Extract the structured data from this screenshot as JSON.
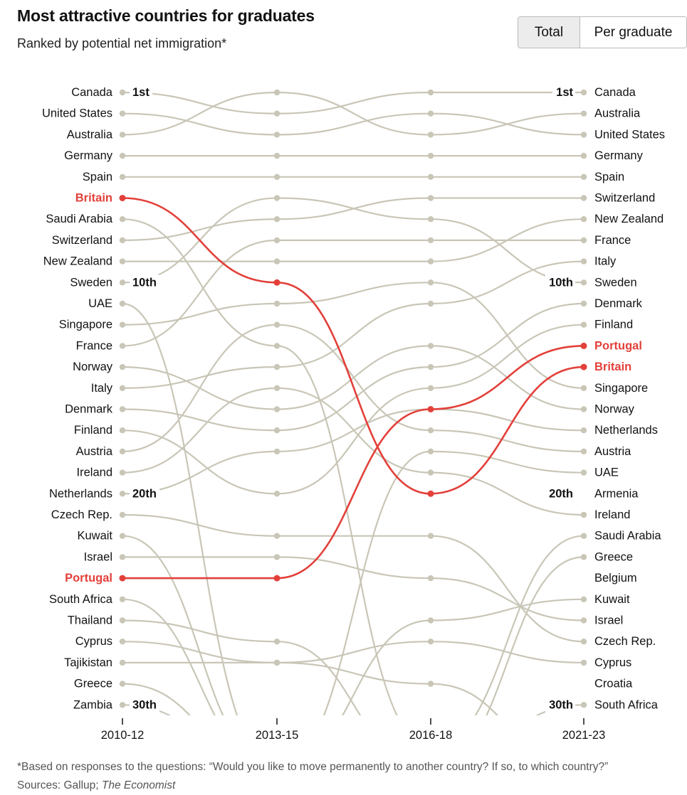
{
  "title": "Most attractive countries for graduates",
  "subtitle": "Ranked by potential net immigration*",
  "toggle": {
    "options": [
      "Total",
      "Per graduate"
    ],
    "selected": "Total"
  },
  "footnote": "*Based on responses to the questions: “Would you like to move permanently to another country? If so, to which country?”",
  "sources_prefix": "Sources: Gallup; ",
  "sources_italic": "The Economist",
  "colors": {
    "line": "#c9c6b7",
    "highlight": "#e3403a",
    "text": "#121212"
  },
  "chart_data": {
    "type": "line",
    "periods": [
      "2010-12",
      "2013-15",
      "2016-18",
      "2021-23"
    ],
    "rank_markers": {
      "left": [
        {
          "rank": 1,
          "label": "1st"
        },
        {
          "rank": 10,
          "label": "10th"
        },
        {
          "rank": 20,
          "label": "20th"
        },
        {
          "rank": 30,
          "label": "30th"
        }
      ],
      "right": [
        {
          "rank": 1,
          "label": "1st"
        },
        {
          "rank": 10,
          "label": "10th"
        },
        {
          "rank": 20,
          "label": "20th"
        },
        {
          "rank": 30,
          "label": "30th"
        }
      ]
    },
    "left_labels": [
      "Canada",
      "United States",
      "Australia",
      "Germany",
      "Spain",
      "Britain",
      "Saudi Arabia",
      "Switzerland",
      "New Zealand",
      "Sweden",
      "UAE",
      "Singapore",
      "France",
      "Norway",
      "Italy",
      "Denmark",
      "Finland",
      "Austria",
      "Ireland",
      "Netherlands",
      "Czech Rep.",
      "Kuwait",
      "Israel",
      "Portugal",
      "South Africa",
      "Thailand",
      "Cyprus",
      "Tajikistan",
      "Greece",
      "Zambia"
    ],
    "right_labels": [
      "Canada",
      "Australia",
      "United States",
      "Germany",
      "Spain",
      "Switzerland",
      "New Zealand",
      "France",
      "Italy",
      "Sweden",
      "Denmark",
      "Finland",
      "Portugal",
      "Britain",
      "Singapore",
      "Norway",
      "Netherlands",
      "Austria",
      "UAE",
      "Armenia",
      "Ireland",
      "Saudi Arabia",
      "Greece",
      "Belgium",
      "Kuwait",
      "Israel",
      "Czech Rep.",
      "Cyprus",
      "Croatia",
      "South Africa"
    ],
    "highlighted": [
      "Britain",
      "Portugal"
    ],
    "series": [
      {
        "name": "Canada",
        "ranks": [
          1,
          2,
          1,
          1
        ]
      },
      {
        "name": "United States",
        "ranks": [
          2,
          3,
          2,
          3
        ]
      },
      {
        "name": "Australia",
        "ranks": [
          3,
          1,
          3,
          2
        ]
      },
      {
        "name": "Germany",
        "ranks": [
          4,
          4,
          4,
          4
        ]
      },
      {
        "name": "Spain",
        "ranks": [
          5,
          5,
          5,
          5
        ]
      },
      {
        "name": "Britain",
        "ranks": [
          6,
          10,
          20,
          14
        ]
      },
      {
        "name": "Saudi Arabia",
        "ranks": [
          7,
          13,
          32,
          22
        ]
      },
      {
        "name": "Switzerland",
        "ranks": [
          8,
          7,
          6,
          6
        ]
      },
      {
        "name": "New Zealand",
        "ranks": [
          9,
          9,
          9,
          7
        ]
      },
      {
        "name": "Sweden",
        "ranks": [
          10,
          6,
          7,
          10
        ]
      },
      {
        "name": "UAE",
        "ranks": [
          11,
          33,
          18,
          19
        ]
      },
      {
        "name": "Singapore",
        "ranks": [
          12,
          11,
          10,
          15
        ]
      },
      {
        "name": "France",
        "ranks": [
          13,
          8,
          8,
          8
        ]
      },
      {
        "name": "Norway",
        "ranks": [
          14,
          16,
          13,
          16
        ]
      },
      {
        "name": "Italy",
        "ranks": [
          15,
          14,
          11,
          9
        ]
      },
      {
        "name": "Denmark",
        "ranks": [
          16,
          17,
          14,
          11
        ]
      },
      {
        "name": "Finland",
        "ranks": [
          17,
          20,
          15,
          12
        ]
      },
      {
        "name": "Austria",
        "ranks": [
          18,
          12,
          17,
          18
        ]
      },
      {
        "name": "Ireland",
        "ranks": [
          19,
          15,
          19,
          21
        ]
      },
      {
        "name": "Netherlands",
        "ranks": [
          20,
          18,
          16,
          17
        ]
      },
      {
        "name": "Czech Rep.",
        "ranks": [
          21,
          22,
          22,
          27
        ]
      },
      {
        "name": "Kuwait",
        "ranks": [
          22,
          33,
          26,
          25
        ]
      },
      {
        "name": "Israel",
        "ranks": [
          23,
          23,
          24,
          26
        ]
      },
      {
        "name": "Portugal",
        "ranks": [
          24,
          24,
          16,
          13
        ]
      },
      {
        "name": "South Africa",
        "ranks": [
          25,
          33,
          33,
          30
        ]
      },
      {
        "name": "Thailand",
        "ranks": [
          26,
          27,
          33,
          33
        ]
      },
      {
        "name": "Cyprus",
        "ranks": [
          27,
          28,
          27,
          28
        ]
      },
      {
        "name": "Tajikistan",
        "ranks": [
          28,
          28,
          29,
          33
        ]
      },
      {
        "name": "Greece",
        "ranks": [
          29,
          33,
          33,
          23
        ]
      },
      {
        "name": "Zambia",
        "ranks": [
          30,
          33,
          33,
          33
        ]
      }
    ]
  }
}
